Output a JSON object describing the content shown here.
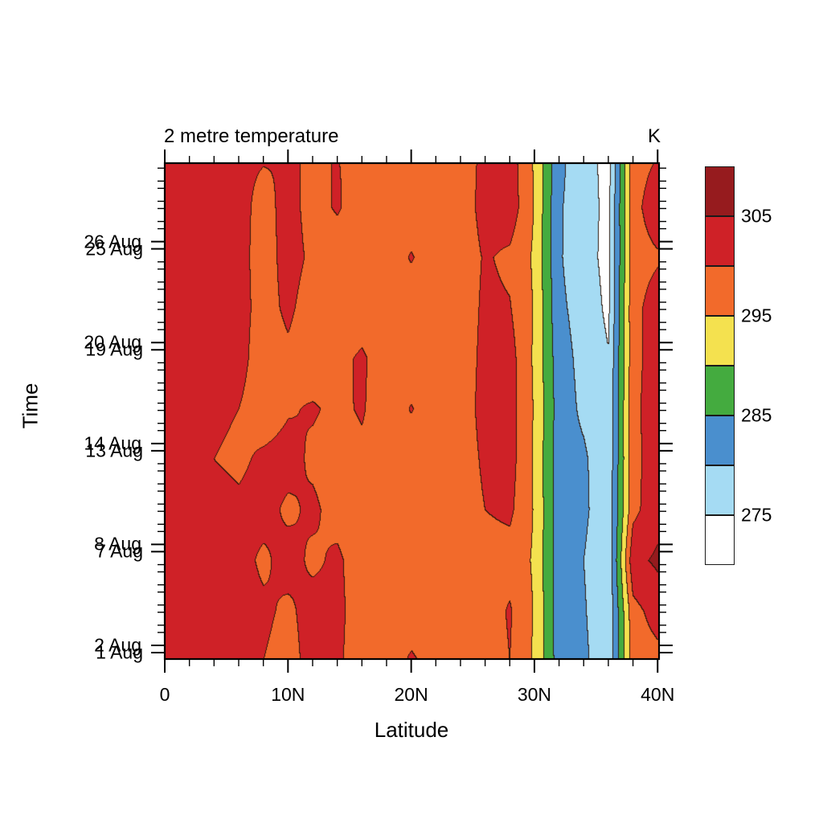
{
  "title": "2 metre temperature",
  "units_label": "K",
  "axes": {
    "x": {
      "label": "Latitude",
      "major_ticks": [
        {
          "lat": 0,
          "label": "0"
        },
        {
          "lat": 10,
          "label": "10N"
        },
        {
          "lat": 20,
          "label": "20N"
        },
        {
          "lat": 30,
          "label": "30N"
        },
        {
          "lat": 40,
          "label": "40N"
        }
      ],
      "minor_step_deg": 2,
      "range_deg": [
        0,
        40
      ]
    },
    "y": {
      "label": "Time",
      "label_pairs": [
        {
          "upper": "26 Aug",
          "lower": "25 Aug",
          "day_lower": 25
        },
        {
          "upper": "20 Aug",
          "lower": "19 Aug",
          "day_lower": 19
        },
        {
          "upper": "14 Aug",
          "lower": "13 Aug",
          "day_lower": 13
        },
        {
          "upper": "8 Aug",
          "lower": "7 Aug",
          "day_lower": 7
        },
        {
          "upper": "2 Aug",
          "lower": "1 Aug",
          "day_lower": 1
        }
      ],
      "major_label_step_days": 6,
      "minor_per_major": 4
    }
  },
  "colorbar": {
    "labels": [
      "305",
      "295",
      "285",
      "275"
    ],
    "label_boundary_indices": [
      1,
      3,
      5,
      7
    ]
  },
  "chart_data": {
    "type": "heatmap",
    "title": "2 metre temperature",
    "units": "K",
    "xlabel": "Latitude",
    "ylabel": "Time",
    "x_range": [
      0,
      40.05
    ],
    "y_range_day_of_august": [
      0.6,
      30.1
    ],
    "levels_K": [
      275,
      280,
      285,
      290,
      295,
      300,
      305
    ],
    "level_colors": [
      "#ffffff",
      "#a5dbf3",
      "#4a8fce",
      "#44ab3f",
      "#f4e14f",
      "#f26a2b",
      "#cf2127",
      "#961b1e"
    ],
    "contour_line_color": "#2d180c",
    "lat_deg": [
      0,
      2,
      4,
      6,
      8,
      10,
      12,
      14,
      16,
      18,
      20,
      22,
      24,
      26,
      28,
      30,
      32,
      34,
      36,
      38,
      40
    ],
    "day_of_aug": [
      30.5,
      27.5,
      24.5,
      21.5,
      18.5,
      15.5,
      12.5,
      9.5,
      6.5,
      3.5,
      0.5
    ],
    "values_K": [
      [
        301,
        302,
        302,
        301,
        300.5,
        300,
        300,
        300,
        299.5,
        297,
        297,
        297,
        297,
        301.5,
        302.5,
        294.4,
        281,
        277.5,
        273,
        298.3,
        300
      ],
      [
        302,
        303,
        303,
        302,
        298,
        302,
        298,
        300.6,
        297,
        297,
        297,
        297,
        297,
        302,
        303,
        294.7,
        280.5,
        277.5,
        273.5,
        298.6,
        302.5
      ],
      [
        302,
        303,
        302.5,
        302,
        297.5,
        302,
        299,
        297,
        297,
        297,
        300.4,
        297,
        297,
        300.5,
        299,
        294.3,
        280.5,
        277,
        273.5,
        298.4,
        299.5
      ],
      [
        302,
        302.5,
        302,
        302,
        298,
        301,
        297.5,
        297,
        297,
        297,
        297,
        297,
        297,
        301,
        300.3,
        294.6,
        281,
        278,
        274,
        298.7,
        302
      ],
      [
        302,
        303,
        302.5,
        302,
        297,
        299,
        297,
        298.5,
        300.8,
        297,
        297,
        297,
        297,
        301.5,
        302,
        294.2,
        282,
        278.5,
        275.3,
        298.4,
        302.5
      ],
      [
        302,
        302,
        301,
        300,
        297,
        299.5,
        300.5,
        299,
        300.5,
        297,
        300.3,
        297,
        297,
        302,
        302,
        294.6,
        282.5,
        279,
        276,
        298.6,
        303
      ],
      [
        303,
        302,
        300,
        299,
        301,
        302,
        299,
        297.5,
        299,
        297,
        297,
        297,
        297,
        301,
        302,
        294.3,
        282,
        280.8,
        276.3,
        298.3,
        303
      ],
      [
        303,
        303,
        302,
        301,
        302,
        299,
        301,
        298,
        297,
        297,
        297,
        297,
        297,
        300,
        301,
        294.6,
        282,
        281,
        276.5,
        298.7,
        303
      ],
      [
        302,
        303,
        302,
        302,
        299,
        302,
        299,
        301,
        297,
        297,
        297,
        297,
        297,
        298,
        298,
        294.4,
        282,
        280,
        276,
        303.5,
        305.9
      ],
      [
        303,
        302,
        302,
        302,
        301,
        299,
        302,
        301,
        298,
        297,
        297,
        297,
        297,
        297.5,
        300.5,
        294.6,
        282,
        280.5,
        276,
        298.5,
        302
      ],
      [
        302,
        303,
        303,
        302,
        300,
        298,
        302,
        301,
        297,
        297,
        300.8,
        298,
        297,
        297,
        300,
        294.3,
        282.5,
        281,
        276.5,
        297.5,
        298.5
      ]
    ]
  }
}
